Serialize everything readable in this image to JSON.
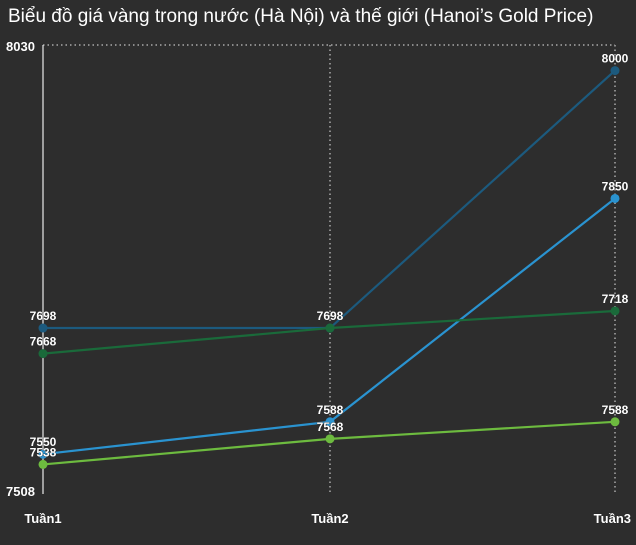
{
  "chart_data": {
    "type": "line",
    "title": "Biểu đồ giá vàng trong nước (Hà Nội) và thế giới (Hanoi’s Gold Price)",
    "categories": [
      "Tuần1",
      "Tuần2",
      "Tuần3"
    ],
    "ylim": [
      7508,
      8030
    ],
    "y_tick_labels": [
      "8030",
      "7508"
    ],
    "grid": "vertical dotted",
    "series": [
      {
        "values": [
          7698,
          7698,
          8000
        ],
        "color": "#1c5a7e",
        "label_text": [
          "7698",
          "7698",
          "8000"
        ]
      },
      {
        "values": [
          7550,
          7588,
          7850
        ],
        "color": "#2a93d0",
        "label_text": [
          "7550",
          "7588",
          "7850"
        ]
      },
      {
        "values": [
          7668,
          7698,
          7718
        ],
        "color": "#1a6a3a",
        "label_text": [
          "7668",
          "",
          "7718"
        ]
      },
      {
        "values": [
          7538,
          7568,
          7588
        ],
        "color": "#6dbb3f",
        "label_text": [
          "7538",
          "7568",
          "7588"
        ]
      }
    ]
  }
}
